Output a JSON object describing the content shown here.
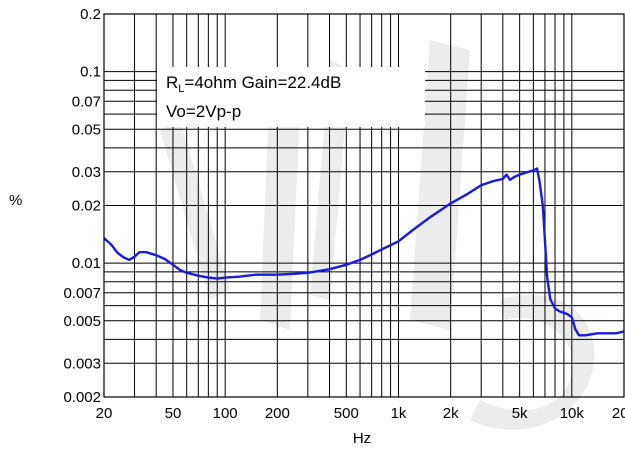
{
  "chart_data": {
    "type": "line",
    "xlabel": "Hz",
    "ylabel": "%",
    "x_scale": "log",
    "y_scale": "log",
    "xlim": [
      20,
      20000
    ],
    "ylim": [
      0.002,
      0.2
    ],
    "grid": true,
    "x_major_ticks": [
      20,
      50,
      100,
      200,
      500,
      1000,
      2000,
      5000,
      10000,
      20000
    ],
    "x_tick_labels": [
      "20",
      "50",
      "100",
      "200",
      "500",
      "1k",
      "2k",
      "5k",
      "10k",
      "20k"
    ],
    "y_major_ticks": [
      0.002,
      0.003,
      0.005,
      0.007,
      0.01,
      0.02,
      0.03,
      0.05,
      0.07,
      0.1,
      0.2
    ],
    "y_tick_labels": [
      "0.002",
      "0.003",
      "0.005",
      "0.007",
      "0.01",
      "0.02",
      "0.03",
      "0.05",
      "0.07",
      "0.1",
      "0.2"
    ],
    "annotation": {
      "line1_main": "R",
      "line1_sub": "L",
      "line1_rest": "=4ohm Gain=22.4dB",
      "line2": "Vo=2Vp-p"
    },
    "series": [
      {
        "color": "#1a1adc",
        "x": [
          20,
          22,
          24,
          26,
          28,
          30,
          32,
          35,
          40,
          45,
          50,
          55,
          60,
          70,
          80,
          90,
          100,
          120,
          150,
          200,
          250,
          300,
          400,
          500,
          600,
          700,
          800,
          1000,
          1200,
          1500,
          2000,
          2500,
          3000,
          3500,
          4000,
          4200,
          4400,
          4600,
          5000,
          5500,
          6000,
          6300,
          6500,
          6800,
          7000,
          7200,
          7500,
          8000,
          8500,
          9000,
          9500,
          10000,
          10500,
          11000,
          12000,
          14000,
          16000,
          18000,
          20000
        ],
        "y": [
          0.0135,
          0.0125,
          0.0113,
          0.0107,
          0.0104,
          0.0108,
          0.0114,
          0.0114,
          0.011,
          0.0105,
          0.0098,
          0.0092,
          0.0089,
          0.0086,
          0.0084,
          0.0083,
          0.0084,
          0.0085,
          0.0087,
          0.0087,
          0.0088,
          0.0089,
          0.0093,
          0.0098,
          0.0104,
          0.0111,
          0.0118,
          0.013,
          0.0148,
          0.0172,
          0.0205,
          0.023,
          0.0255,
          0.0268,
          0.0275,
          0.029,
          0.0272,
          0.028,
          0.029,
          0.0298,
          0.0305,
          0.0312,
          0.027,
          0.02,
          0.013,
          0.0085,
          0.0065,
          0.0058,
          0.0056,
          0.0055,
          0.0054,
          0.0052,
          0.0045,
          0.0042,
          0.0042,
          0.0043,
          0.0043,
          0.0043,
          0.0044
        ]
      }
    ]
  }
}
